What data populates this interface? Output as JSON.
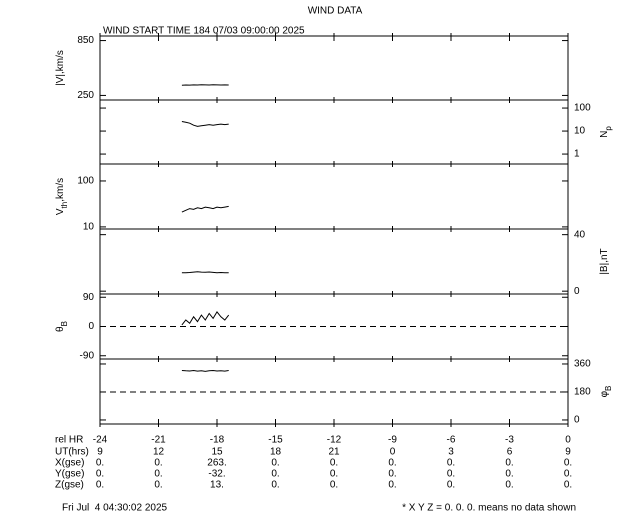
{
  "title": "WIND DATA",
  "subtitle": "WIND START TIME 184 07/03 09:00:00 2025",
  "x_axis": {
    "label": "rel HR",
    "xlim": [
      -24,
      0
    ],
    "xticks": [
      -24,
      -21,
      -18,
      -15,
      -12,
      -9,
      -6,
      -3,
      0
    ],
    "x": [
      -19.8,
      -19.6,
      -19.4,
      -19.2,
      -19.0,
      -18.8,
      -18.6,
      -18.4,
      -18.2,
      -18.0,
      -17.8,
      -17.6,
      -17.4
    ]
  },
  "table": [
    {
      "label": "UT(hrs)",
      "values": [
        "9",
        "12",
        "15",
        "18",
        "21",
        "0",
        "3",
        "6",
        "9"
      ]
    },
    {
      "label": "X(gse)",
      "values": [
        "0.",
        "0.",
        "263.",
        "0.",
        "0.",
        "0.",
        "0.",
        "0.",
        "0."
      ]
    },
    {
      "label": "Y(gse)",
      "values": [
        "0.",
        "0.",
        "-32.",
        "0.",
        "0.",
        "0.",
        "0.",
        "0.",
        "0."
      ]
    },
    {
      "label": "Z(gse)",
      "values": [
        "0.",
        "0.",
        "13.",
        "0.",
        "0.",
        "0.",
        "0.",
        "0.",
        "0."
      ]
    }
  ],
  "footer_left": "Fri Jul  4 04:30:02 2025",
  "footer_right": "* X Y Z = 0. 0. 0. means no data shown",
  "chart_data": [
    {
      "type": "line",
      "side": "left",
      "ylabel": [
        {
          "t": "|V|,km/s"
        }
      ],
      "ylim": [
        200,
        900
      ],
      "yticks": [
        250,
        850
      ],
      "color": "#000000",
      "values": [
        362,
        364,
        363,
        365,
        364,
        366,
        365,
        364,
        366,
        365,
        364,
        365,
        364
      ]
    },
    {
      "type": "line",
      "side": "right",
      "log": true,
      "ylabel": [
        {
          "t": "N"
        },
        {
          "t": "p",
          "sub": true
        }
      ],
      "ylim": [
        0.37,
        224
      ],
      "yticks": [
        1,
        10,
        100
      ],
      "color": "#000000",
      "values": [
        26,
        24,
        22,
        18,
        16,
        17,
        18,
        19,
        18,
        19,
        20,
        19,
        20
      ]
    },
    {
      "type": "line",
      "side": "left",
      "log": true,
      "ylabel": [
        {
          "t": "V"
        },
        {
          "t": "th",
          "sub": true
        },
        {
          "t": ",km/s"
        }
      ],
      "ylim": [
        9,
        234
      ],
      "yticks": [
        10,
        100
      ],
      "color": "#000000",
      "values": [
        21,
        23,
        25,
        24,
        26,
        25,
        27,
        26,
        25,
        27,
        26,
        27,
        28
      ]
    },
    {
      "type": "line",
      "side": "right",
      "ylabel": [
        {
          "t": "|B|,nT"
        }
      ],
      "ylim": [
        -2,
        44
      ],
      "yticks": [
        0,
        40
      ],
      "color": "#000000",
      "values": [
        13,
        13,
        13.2,
        13.5,
        13.8,
        13.5,
        13.4,
        13.6,
        13.3,
        13,
        13.2,
        13.1,
        13
      ]
    },
    {
      "type": "line",
      "side": "left",
      "ylabel": [
        {
          "t": "θ"
        },
        {
          "t": "B",
          "sub": true
        }
      ],
      "ylim": [
        -100,
        100
      ],
      "yticks": [
        -90,
        0,
        90
      ],
      "ref_line": 0,
      "color": "#000000",
      "values": [
        5,
        20,
        10,
        30,
        15,
        35,
        20,
        40,
        25,
        45,
        30,
        20,
        35
      ]
    },
    {
      "type": "line",
      "side": "right",
      "ylabel": [
        {
          "t": "φ"
        },
        {
          "t": "B",
          "sub": true
        }
      ],
      "ylim": [
        -26,
        392
      ],
      "yticks": [
        0,
        180,
        360
      ],
      "ref_line": 180,
      "color": "#000000",
      "values": [
        318,
        316,
        315,
        318,
        314,
        317,
        312,
        316,
        318,
        315,
        317,
        314,
        318
      ]
    }
  ]
}
